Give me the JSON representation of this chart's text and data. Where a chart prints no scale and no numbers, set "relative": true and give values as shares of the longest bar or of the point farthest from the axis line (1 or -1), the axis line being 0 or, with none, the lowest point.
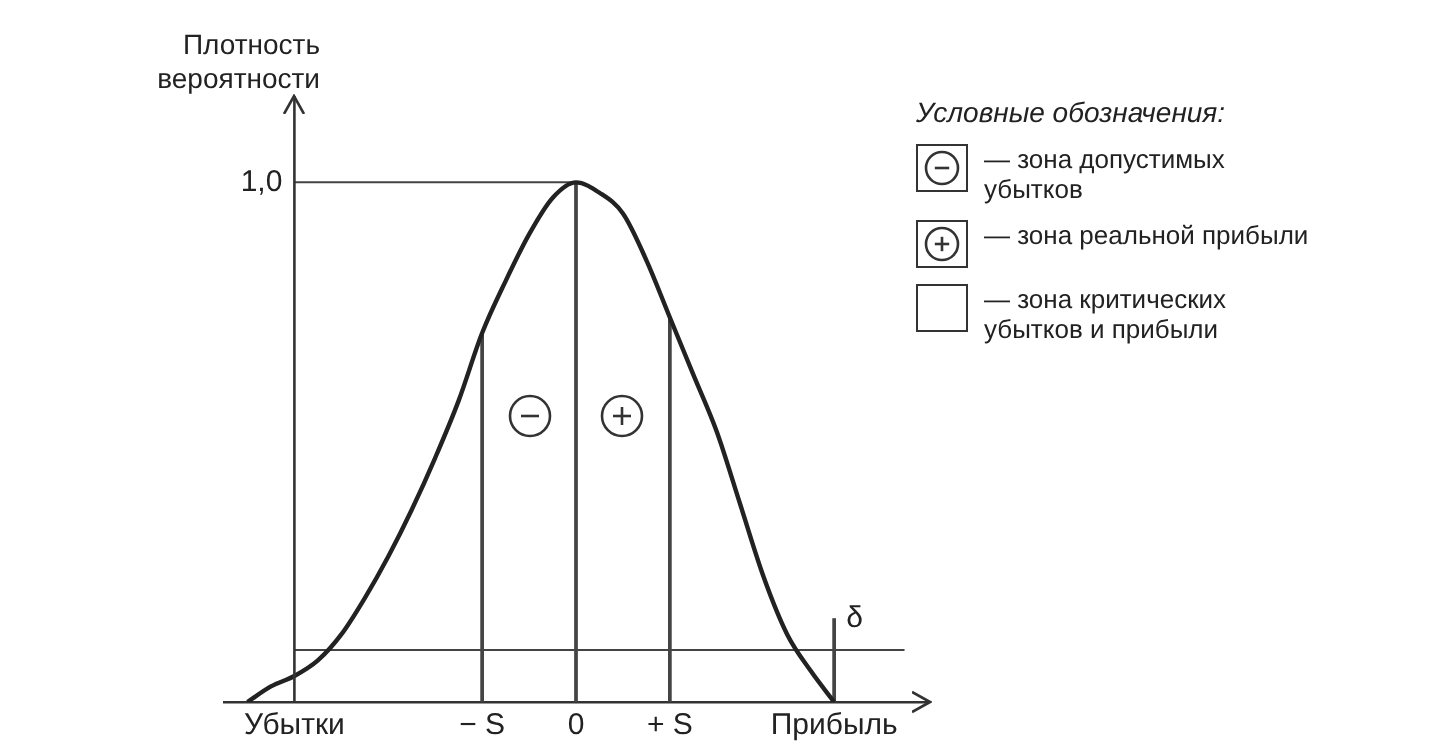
{
  "chart_data": {
    "type": "line",
    "relative": true,
    "ylabel": "Плотность вероятности",
    "categories": [
      null,
      null,
      null,
      "Убытки",
      null,
      null,
      null,
      null,
      null,
      null,
      null,
      "− S",
      null,
      null,
      null,
      "0",
      null,
      null,
      null,
      "+ S",
      null,
      null,
      null,
      null,
      null,
      null,
      "Прибыль",
      null,
      null,
      null,
      null
    ],
    "series": [
      {
        "color": "#222222",
        "values": [
          null,
          0,
          0.03,
          0.05,
          0.08,
          0.13,
          0.2,
          0.28,
          0.37,
          0.47,
          0.58,
          0.71,
          0.81,
          0.9,
          0.97,
          1,
          0.98,
          0.94,
          0.85,
          0.74,
          0.63,
          0.52,
          0.38,
          0.24,
          0.13,
          0.06,
          0,
          null,
          null,
          null,
          null
        ]
      },
      {
        "color": "#444444",
        "values": [
          null,
          null,
          null,
          1,
          null,
          null,
          null,
          null,
          null,
          null,
          null,
          null,
          null,
          null,
          null,
          1,
          null,
          null,
          null,
          null,
          null,
          null,
          null,
          null,
          null,
          null,
          null,
          null,
          null,
          null,
          null
        ]
      },
      {
        "color": "#444444",
        "values": [
          null,
          null,
          null,
          0.1,
          null,
          null,
          null,
          null,
          null,
          null,
          null,
          null,
          null,
          null,
          null,
          null,
          null,
          null,
          null,
          null,
          null,
          null,
          null,
          null,
          null,
          null,
          null,
          null,
          null,
          0.1,
          null
        ]
      },
      {
        "type": "bar",
        "color": "#444444",
        "values": [
          null,
          null,
          null,
          null,
          null,
          null,
          null,
          null,
          null,
          null,
          null,
          0.71,
          null,
          null,
          null,
          1,
          null,
          null,
          null,
          0.74,
          null,
          null,
          null,
          null,
          null,
          null,
          0.16,
          null,
          null,
          null,
          null
        ]
      }
    ],
    "ref_lines": [
      {
        "axis": "x",
        "value": "Убытки",
        "color": "#333333"
      }
    ],
    "annotations": [
      {
        "text": "1,0",
        "x": "Убытки",
        "y": 1
      },
      {
        "text": "δ",
        "x": "Прибыль",
        "y": 0.16
      },
      "Условные обозначения:",
      "— зона допустимых убытков",
      "— зона реальной прибыли",
      "— зона критических убытков и прибыли"
    ],
    "grid": false,
    "legend": false,
    "marker": "none",
    "line_style": "solid"
  }
}
